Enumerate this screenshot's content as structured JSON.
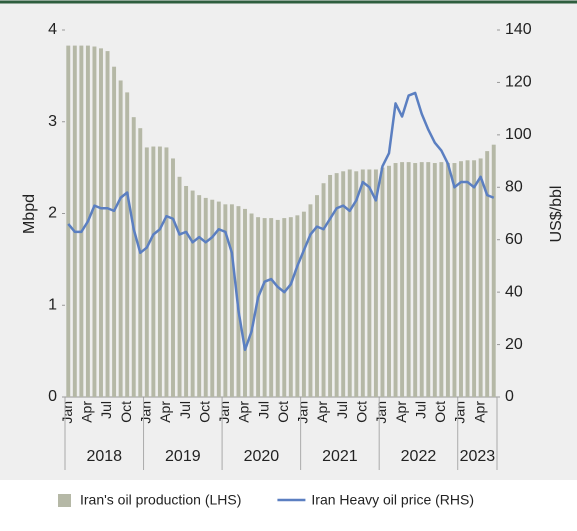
{
  "chart_data": {
    "type": "bar_line",
    "y_label": "Mbpd",
    "y2_label": "US$/bbl",
    "categories": [
      "Jan",
      null,
      null,
      "Apr",
      null,
      null,
      "Jul",
      null,
      null,
      "Oct",
      null,
      null,
      "Jan",
      null,
      null,
      "Apr",
      null,
      null,
      "Jul",
      null,
      null,
      "Oct",
      null,
      null,
      "Jan",
      null,
      null,
      "Apr",
      null,
      null,
      "Jul",
      null,
      null,
      "Oct",
      null,
      null,
      "Jan",
      null,
      null,
      "Apr",
      null,
      null,
      "Jul",
      null,
      null,
      "Oct",
      null,
      null,
      "Jan",
      null,
      null,
      "Apr",
      null,
      null,
      "Jul",
      null,
      null,
      "Oct",
      null,
      null,
      "Jan",
      null,
      null,
      "Apr",
      null,
      null
    ],
    "groups": [
      "2018",
      "2019",
      "2020",
      "2021",
      "2022",
      "2023"
    ],
    "series": [
      {
        "name": "Iran's oil production (LHS)",
        "type": "bar",
        "color": "#b5b8a6",
        "values": [
          3.83,
          3.83,
          3.83,
          3.83,
          3.82,
          3.8,
          3.77,
          3.6,
          3.45,
          3.32,
          3.05,
          2.93,
          2.72,
          2.73,
          2.73,
          2.72,
          2.6,
          2.4,
          2.3,
          2.25,
          2.2,
          2.17,
          2.15,
          2.13,
          2.1,
          2.1,
          2.08,
          2.05,
          2.0,
          1.96,
          1.95,
          1.95,
          1.93,
          1.95,
          1.96,
          1.98,
          2.02,
          2.1,
          2.2,
          2.33,
          2.42,
          2.44,
          2.46,
          2.48,
          2.46,
          2.48,
          2.48,
          2.48,
          2.5,
          2.52,
          2.55,
          2.56,
          2.56,
          2.55,
          2.56,
          2.56,
          2.55,
          2.56,
          2.55,
          2.55,
          2.57,
          2.58,
          2.58,
          2.6,
          2.68,
          2.75
        ]
      },
      {
        "name": "Iran Heavy oil price (RHS)",
        "type": "line",
        "axis": "y2",
        "color": "#5b7fc1",
        "values": [
          66,
          63,
          63,
          67,
          73,
          72,
          72,
          71,
          76,
          78,
          64,
          55,
          57,
          62,
          64,
          69,
          68,
          62,
          63,
          59,
          61,
          59,
          61,
          64,
          63,
          55,
          33,
          18,
          25,
          38,
          44,
          45,
          42,
          40,
          43,
          50,
          56,
          62,
          65,
          64,
          68,
          72,
          73,
          71,
          75,
          82,
          80,
          75,
          88,
          93,
          112,
          107,
          115,
          116,
          108,
          102,
          97,
          94,
          89,
          80,
          82,
          82,
          80,
          84,
          77,
          76
        ]
      }
    ],
    "ylim": [
      0,
      4
    ],
    "yticks": [
      0,
      1,
      2,
      3,
      4
    ],
    "y2lim": [
      0,
      140
    ],
    "y2ticks": [
      0,
      20,
      40,
      60,
      80,
      100,
      120,
      140
    ]
  }
}
